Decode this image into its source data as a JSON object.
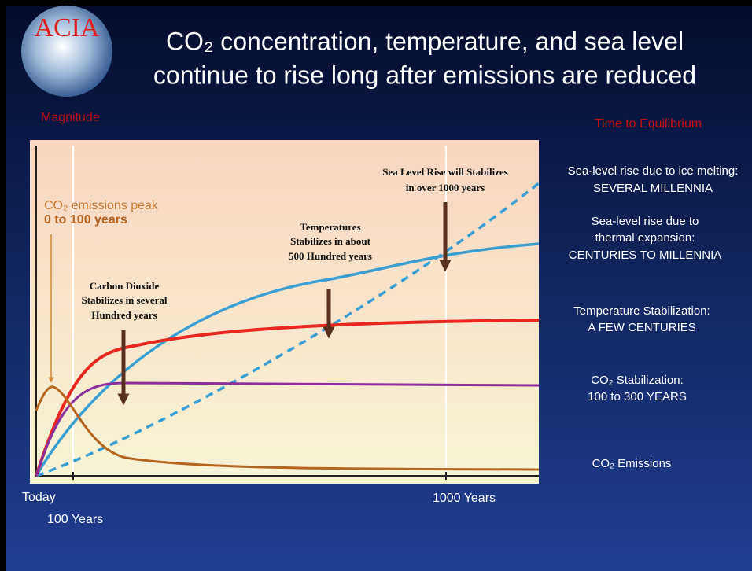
{
  "logo": "ACIA",
  "title": [
    "CO₂ concentration, temperature, and sea level",
    "continue to rise long after emissions are reduced"
  ],
  "magnitude_label": "Magnitude",
  "equilibrium_label": "Time to Equilibrium",
  "emissions_peak": [
    "CO₂ emissions peak",
    "0 to 100 years"
  ],
  "annotations": [
    [
      "Carbon Dioxide",
      "Stabilizes in several",
      "Hundred years"
    ],
    [
      "Temperatures",
      "Stabilizes in about",
      "500 Hundred years"
    ],
    [
      "Sea Level Rise will Stabilizes",
      "in over 1000 years"
    ]
  ],
  "right_labels": [
    [
      "Sea-level rise due to ice melting:",
      "SEVERAL MILLENNIA"
    ],
    [
      "Sea-level rise due to",
      "thermal expansion:",
      "CENTURIES TO MILLENNIA"
    ],
    [
      "Temperature Stabilization:",
      "A FEW CENTURIES"
    ],
    [
      "CO₂ Stabilization:",
      "100 to 300 YEARS"
    ],
    [
      "CO₂ Emissions"
    ]
  ],
  "x_labels": [
    "Today",
    "100 Years",
    "1000 Years"
  ]
}
